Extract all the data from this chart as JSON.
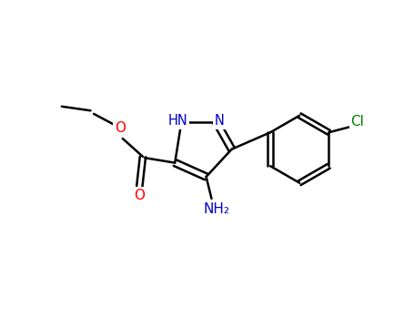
{
  "background_color": "#ffffff",
  "atom_colors": {
    "N": "#0000CD",
    "O": "#FF0000",
    "Cl": "#008000",
    "C": "#000000"
  },
  "figsize": [
    4.55,
    3.5
  ],
  "dpi": 100,
  "bond_lw": 1.8,
  "bond_color": "#000000",
  "font_size_hetero": 11,
  "font_size_label": 10
}
